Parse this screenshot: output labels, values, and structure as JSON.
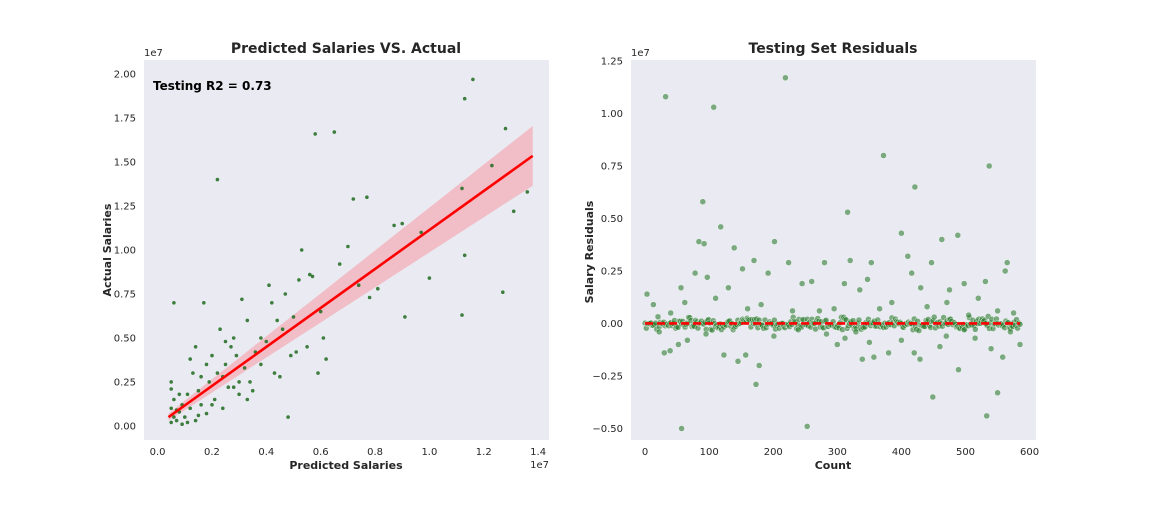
{
  "chart_data": [
    {
      "type": "scatter",
      "title": "Predicted Salaries VS. Actual",
      "xlabel": "Predicted Salaries",
      "ylabel": "Actual Salaries",
      "x_offset_label": "1e7",
      "y_offset_label": "1e7",
      "annotation": "Testing R2 = 0.73",
      "xlim": [
        -0.05,
        1.44
      ],
      "ylim": [
        -0.08,
        2.08
      ],
      "xticks": [
        0.0,
        0.2,
        0.4,
        0.6,
        0.8,
        1.0,
        1.2,
        1.4
      ],
      "xtick_labels": [
        "0.0",
        "0.2",
        "0.4",
        "0.6",
        "0.8",
        "1.0",
        "1.2",
        "1.4"
      ],
      "yticks": [
        0.0,
        0.25,
        0.5,
        0.75,
        1.0,
        1.25,
        1.5,
        1.75,
        2.0
      ],
      "ytick_labels": [
        "0.00",
        "0.25",
        "0.50",
        "0.75",
        "1.00",
        "1.25",
        "1.50",
        "1.75",
        "2.00"
      ],
      "grid": false,
      "colors": {
        "points": "#1e6b1e",
        "line": "#ff0000",
        "band": "#f4a6b0",
        "background": "#eaeaf2"
      },
      "regression": {
        "x": [
          0.04,
          1.38
        ],
        "y": [
          0.05,
          1.535
        ],
        "ci_at_start": 0.02,
        "ci_at_end": 0.17
      },
      "points": [
        [
          0.05,
          0.02
        ],
        [
          0.06,
          0.05
        ],
        [
          0.07,
          0.03
        ],
        [
          0.08,
          0.08
        ],
        [
          0.05,
          0.1
        ],
        [
          0.06,
          0.15
        ],
        [
          0.05,
          0.21
        ],
        [
          0.05,
          0.25
        ],
        [
          0.06,
          0.7
        ],
        [
          0.09,
          0.12
        ],
        [
          0.1,
          0.05
        ],
        [
          0.11,
          0.02
        ],
        [
          0.12,
          0.1
        ],
        [
          0.13,
          0.3
        ],
        [
          0.14,
          0.45
        ],
        [
          0.15,
          0.2
        ],
        [
          0.16,
          0.12
        ],
        [
          0.17,
          0.7
        ],
        [
          0.18,
          0.35
        ],
        [
          0.19,
          0.25
        ],
        [
          0.2,
          0.4
        ],
        [
          0.21,
          0.15
        ],
        [
          0.22,
          0.3
        ],
        [
          0.23,
          0.55
        ],
        [
          0.24,
          0.28
        ],
        [
          0.25,
          0.35
        ],
        [
          0.26,
          0.22
        ],
        [
          0.27,
          0.45
        ],
        [
          0.28,
          0.5
        ],
        [
          0.29,
          0.4
        ],
        [
          0.3,
          0.18
        ],
        [
          0.31,
          0.72
        ],
        [
          0.32,
          0.33
        ],
        [
          0.33,
          0.6
        ],
        [
          0.34,
          0.25
        ],
        [
          0.36,
          0.42
        ],
        [
          0.38,
          0.5
        ],
        [
          0.4,
          0.48
        ],
        [
          0.41,
          0.8
        ],
        [
          0.42,
          0.7
        ],
        [
          0.43,
          0.3
        ],
        [
          0.44,
          0.6
        ],
        [
          0.46,
          0.55
        ],
        [
          0.47,
          0.75
        ],
        [
          0.48,
          0.05
        ],
        [
          0.49,
          0.4
        ],
        [
          0.5,
          0.62
        ],
        [
          0.51,
          0.42
        ],
        [
          0.52,
          0.83
        ],
        [
          0.53,
          1.0
        ],
        [
          0.55,
          0.45
        ],
        [
          0.56,
          0.86
        ],
        [
          0.57,
          0.85
        ],
        [
          0.58,
          1.66
        ],
        [
          0.59,
          0.3
        ],
        [
          0.6,
          0.65
        ],
        [
          0.61,
          0.5
        ],
        [
          0.62,
          0.38
        ],
        [
          0.65,
          1.67
        ],
        [
          0.67,
          0.92
        ],
        [
          0.7,
          1.02
        ],
        [
          0.72,
          1.29
        ],
        [
          0.74,
          0.8
        ],
        [
          0.77,
          1.3
        ],
        [
          0.78,
          0.73
        ],
        [
          0.81,
          0.78
        ],
        [
          0.87,
          1.14
        ],
        [
          0.9,
          1.15
        ],
        [
          0.91,
          0.62
        ],
        [
          0.97,
          1.1
        ],
        [
          1.0,
          0.84
        ],
        [
          1.12,
          1.35
        ],
        [
          1.12,
          0.63
        ],
        [
          1.13,
          0.97
        ],
        [
          1.13,
          1.86
        ],
        [
          1.16,
          1.97
        ],
        [
          1.23,
          1.48
        ],
        [
          1.27,
          0.76
        ],
        [
          1.28,
          1.69
        ],
        [
          1.31,
          1.22
        ],
        [
          1.36,
          1.33
        ],
        [
          0.22,
          1.4
        ],
        [
          0.18,
          0.07
        ],
        [
          0.14,
          0.03
        ],
        [
          0.09,
          0.01
        ],
        [
          0.07,
          0.09
        ],
        [
          0.11,
          0.18
        ],
        [
          0.16,
          0.28
        ],
        [
          0.2,
          0.12
        ],
        [
          0.25,
          0.48
        ],
        [
          0.35,
          0.2
        ],
        [
          0.38,
          0.35
        ],
        [
          0.3,
          0.25
        ],
        [
          0.08,
          0.18
        ],
        [
          0.12,
          0.38
        ],
        [
          0.15,
          0.06
        ],
        [
          0.24,
          0.1
        ],
        [
          0.28,
          0.22
        ],
        [
          0.33,
          0.15
        ],
        [
          0.45,
          0.28
        ]
      ]
    },
    {
      "type": "scatter",
      "title": "Testing Set Residuals",
      "xlabel": "Count",
      "ylabel": "Salary Residuals",
      "y_offset_label": "1e7",
      "xlim": [
        -22,
        610
      ],
      "ylim": [
        -0.555,
        1.255
      ],
      "xticks": [
        0,
        100,
        200,
        300,
        400,
        500,
        600
      ],
      "xtick_labels": [
        "0",
        "100",
        "200",
        "300",
        "400",
        "500",
        "600"
      ],
      "yticks": [
        -0.5,
        -0.25,
        0.0,
        0.25,
        0.5,
        0.75,
        1.0,
        1.25
      ],
      "ytick_labels": [
        "−0.50",
        "−0.25",
        "0.00",
        "0.25",
        "0.50",
        "0.75",
        "1.00",
        "1.25"
      ],
      "grid": false,
      "zero_line": {
        "y": 0,
        "style": "dashed"
      },
      "colors": {
        "points": "#2e7d32",
        "zero_line": "#ff0000",
        "background": "#eaeaf2"
      },
      "points": [
        [
          32,
          1.08
        ],
        [
          107,
          1.03
        ],
        [
          219,
          1.17
        ],
        [
          372,
          0.8
        ],
        [
          421,
          0.65
        ],
        [
          537,
          0.75
        ],
        [
          90,
          0.58
        ],
        [
          316,
          0.53
        ],
        [
          400,
          0.43
        ],
        [
          488,
          0.42
        ],
        [
          118,
          0.46
        ],
        [
          84,
          0.39
        ],
        [
          92,
          0.38
        ],
        [
          202,
          0.39
        ],
        [
          224,
          0.29
        ],
        [
          139,
          0.36
        ],
        [
          170,
          0.3
        ],
        [
          260,
          0.2
        ],
        [
          347,
          0.21
        ],
        [
          353,
          0.29
        ],
        [
          410,
          0.32
        ],
        [
          416,
          0.24
        ],
        [
          463,
          0.4
        ],
        [
          475,
          0.16
        ],
        [
          498,
          0.19
        ],
        [
          565,
          0.29
        ],
        [
          562,
          0.25
        ],
        [
          531,
          0.2
        ],
        [
          56,
          0.17
        ],
        [
          78,
          0.24
        ],
        [
          97,
          0.22
        ],
        [
          130,
          0.17
        ],
        [
          152,
          0.26
        ],
        [
          181,
          0.09
        ],
        [
          245,
          0.19
        ],
        [
          280,
          0.29
        ],
        [
          320,
          0.3
        ],
        [
          311,
          0.19
        ],
        [
          335,
          0.16
        ],
        [
          385,
          0.1
        ],
        [
          430,
          0.17
        ],
        [
          447,
          0.29
        ],
        [
          471,
          0.1
        ],
        [
          520,
          0.12
        ],
        [
          3,
          0.14
        ],
        [
          13,
          0.09
        ],
        [
          40,
          0.05
        ],
        [
          62,
          0.1
        ],
        [
          110,
          0.12
        ],
        [
          160,
          0.07
        ],
        [
          192,
          0.24
        ],
        [
          230,
          0.06
        ],
        [
          272,
          0.06
        ],
        [
          295,
          0.07
        ],
        [
          366,
          0.07
        ],
        [
          440,
          0.08
        ],
        [
          505,
          0.04
        ],
        [
          550,
          0.06
        ],
        [
          575,
          0.05
        ],
        [
          57,
          -0.5
        ],
        [
          253,
          -0.49
        ],
        [
          533,
          -0.44
        ],
        [
          449,
          -0.35
        ],
        [
          550,
          -0.33
        ],
        [
          173,
          -0.29
        ],
        [
          489,
          -0.22
        ],
        [
          145,
          -0.18
        ],
        [
          157,
          -0.15
        ],
        [
          178,
          -0.2
        ],
        [
          339,
          -0.17
        ],
        [
          357,
          -0.16
        ],
        [
          380,
          -0.14
        ],
        [
          420,
          -0.14
        ],
        [
          429,
          -0.17
        ],
        [
          39,
          -0.13
        ],
        [
          52,
          -0.1
        ],
        [
          66,
          -0.08
        ],
        [
          30,
          -0.14
        ],
        [
          123,
          -0.15
        ],
        [
          201,
          -0.06
        ],
        [
          300,
          -0.1
        ],
        [
          312,
          -0.07
        ],
        [
          350,
          -0.09
        ],
        [
          400,
          -0.08
        ],
        [
          460,
          -0.11
        ],
        [
          470,
          -0.06
        ],
        [
          515,
          -0.07
        ],
        [
          540,
          -0.12
        ],
        [
          558,
          -0.16
        ],
        [
          585,
          -0.1
        ],
        [
          22,
          -0.04
        ],
        [
          95,
          -0.05
        ],
        [
          239,
          -0.03
        ],
        [
          283,
          -0.05
        ],
        [
          329,
          -0.04
        ],
        [
          498,
          -0.03
        ],
        [
          570,
          -0.04
        ]
      ],
      "dense_band": {
        "x_start": 0,
        "x_end": 585,
        "count": 320,
        "y_spread": 0.035
      }
    }
  ]
}
